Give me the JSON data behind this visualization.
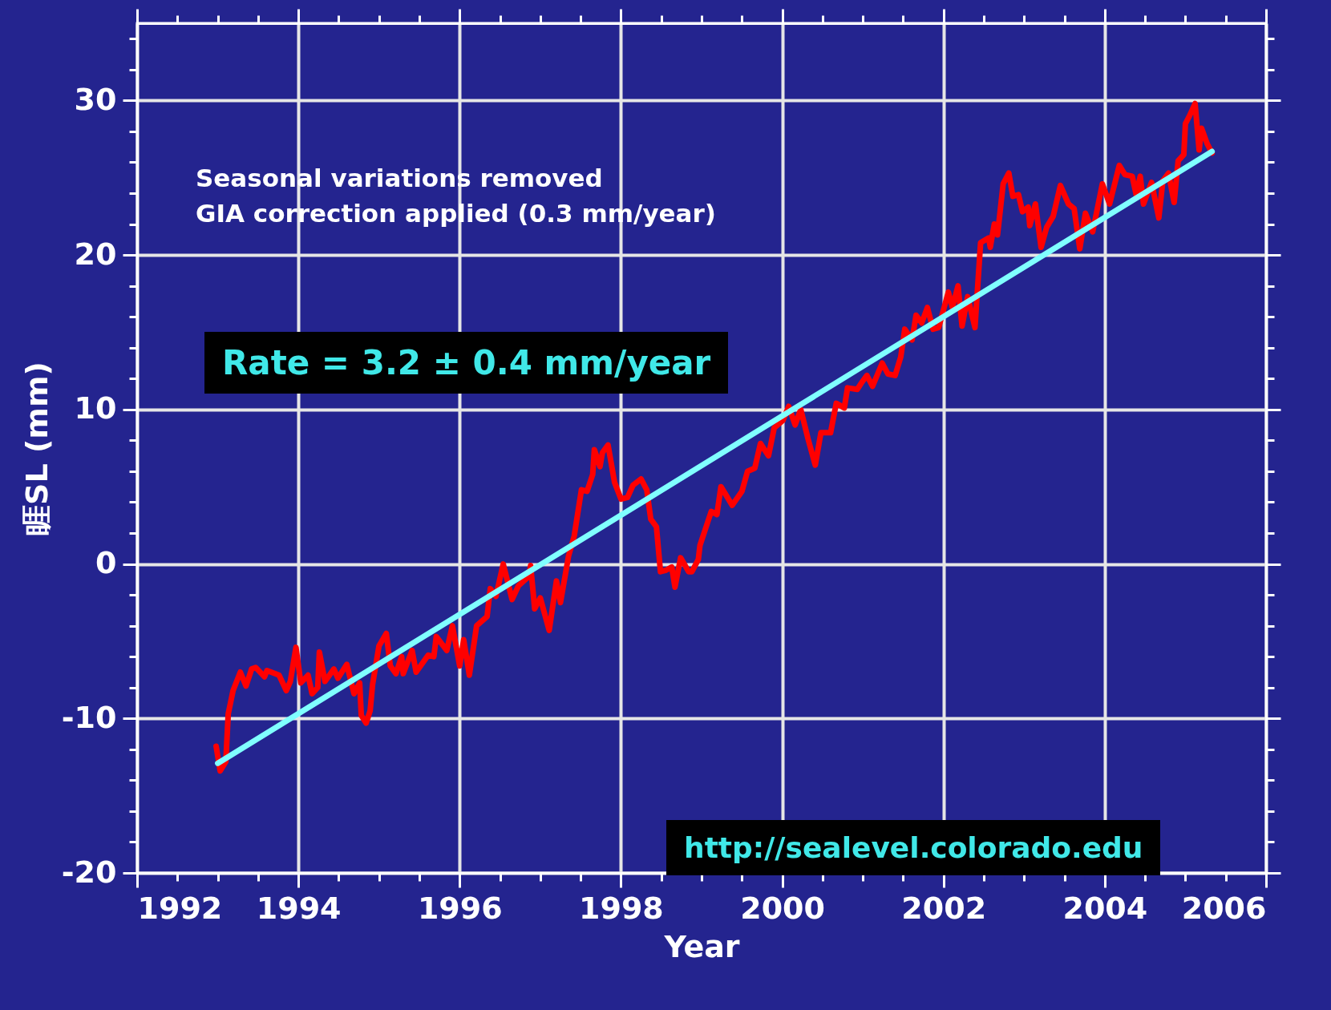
{
  "chart_data": {
    "type": "line",
    "xlabel": "Year",
    "ylabel": "睚SL (mm)",
    "xlim": [
      1992,
      2006
    ],
    "ylim": [
      -20,
      35
    ],
    "xticks": [
      1992,
      {
        "value": 1992.5,
        "label": null
      },
      {
        "value": 1993,
        "label": null
      },
      {
        "value": 1993.5,
        "label": null
      },
      1994,
      {
        "value": 1994.5,
        "label": null
      },
      {
        "value": 1995,
        "label": null
      },
      {
        "value": 1995.5,
        "label": null
      },
      1996,
      {
        "value": 1996.5,
        "label": null
      },
      {
        "value": 1997,
        "label": null
      },
      {
        "value": 1997.5,
        "label": null
      },
      1998,
      {
        "value": 1998.5,
        "label": null
      },
      {
        "value": 1999,
        "label": null
      },
      {
        "value": 1999.5,
        "label": null
      },
      2000,
      {
        "value": 2000.5,
        "label": null
      },
      {
        "value": 2001,
        "label": null
      },
      {
        "value": 2001.5,
        "label": null
      },
      2002,
      {
        "value": 2002.5,
        "label": null
      },
      {
        "value": 2003,
        "label": null
      },
      {
        "value": 2003.5,
        "label": null
      },
      2004,
      {
        "value": 2004.5,
        "label": null
      },
      {
        "value": 2005,
        "label": null
      },
      {
        "value": 2005.5,
        "label": null
      },
      2006
    ],
    "yticks": [
      -20,
      {
        "value": -18,
        "label": null
      },
      {
        "value": -16,
        "label": null
      },
      {
        "value": -14,
        "label": null
      },
      {
        "value": -12,
        "label": null
      },
      -10,
      {
        "value": -8,
        "label": null
      },
      {
        "value": -6,
        "label": null
      },
      {
        "value": -4,
        "label": null
      },
      {
        "value": -2,
        "label": null
      },
      0,
      {
        "value": 2,
        "label": null
      },
      {
        "value": 4,
        "label": null
      },
      {
        "value": 6,
        "label": null
      },
      {
        "value": 8,
        "label": null
      },
      10,
      {
        "value": 12,
        "label": null
      },
      {
        "value": 14,
        "label": null
      },
      {
        "value": 16,
        "label": null
      },
      {
        "value": 18,
        "label": null
      },
      20,
      {
        "value": 22,
        "label": null
      },
      {
        "value": 24,
        "label": null
      },
      {
        "value": 26,
        "label": null
      },
      {
        "value": 28,
        "label": null
      },
      30,
      {
        "value": 32,
        "label": null
      },
      {
        "value": 34,
        "label": null
      }
    ],
    "grid": true,
    "annotations": [
      "Seasonal variations removed",
      "GIA correction applied (0.3 mm/year)",
      "Rate = 3.2 ± 0.4 mm/year",
      "http://sealevel.colorado.edu"
    ],
    "series": [
      {
        "type": "line",
        "color": "#ff0000",
        "x": [
          1992.98,
          1993.03,
          1993.1,
          1993.13,
          1993.19,
          1993.28,
          1993.35,
          1993.42,
          1993.47,
          1993.58,
          1993.61,
          1993.76,
          1993.85,
          1993.9,
          1993.97,
          1994.03,
          1994.12,
          1994.17,
          1994.24,
          1994.26,
          1994.33,
          1994.44,
          1994.49,
          1994.6,
          1994.69,
          1994.76,
          1994.78,
          1994.84,
          1994.89,
          1994.92,
          1995.0,
          1995.09,
          1995.14,
          1995.21,
          1995.28,
          1995.3,
          1995.41,
          1995.46,
          1995.61,
          1995.68,
          1995.71,
          1995.84,
          1995.91,
          1996.0,
          1996.05,
          1996.12,
          1996.21,
          1996.34,
          1996.38,
          1996.45,
          1996.54,
          1996.65,
          1996.73,
          1996.86,
          1996.88,
          1996.93,
          1997.0,
          1997.11,
          1997.2,
          1997.25,
          1997.35,
          1997.42,
          1997.51,
          1997.58,
          1997.65,
          1997.67,
          1997.74,
          1997.77,
          1997.84,
          1997.92,
          1998.0,
          1998.08,
          1998.15,
          1998.25,
          1998.32,
          1998.37,
          1998.44,
          1998.49,
          1998.56,
          1998.63,
          1998.67,
          1998.74,
          1998.84,
          1998.88,
          1998.96,
          1998.98,
          1999.12,
          1999.19,
          1999.24,
          1999.38,
          1999.5,
          1999.57,
          1999.66,
          1999.73,
          1999.83,
          1999.9,
          2000.01,
          2000.08,
          2000.16,
          2000.23,
          2000.32,
          2000.41,
          2000.48,
          2000.6,
          2000.67,
          2000.77,
          2000.81,
          2000.93,
          2000.98,
          2001.05,
          2001.12,
          2001.24,
          2001.31,
          2001.4,
          2001.47,
          2001.52,
          2001.61,
          2001.66,
          2001.73,
          2001.8,
          2001.87,
          2001.94,
          2002.06,
          2002.11,
          2002.18,
          2002.23,
          2002.3,
          2002.39,
          2002.46,
          2002.56,
          2002.58,
          2002.63,
          2002.67,
          2002.74,
          2002.81,
          2002.86,
          2002.93,
          2002.98,
          2003.05,
          2003.07,
          2003.14,
          2003.21,
          2003.28,
          2003.36,
          2003.45,
          2003.55,
          2003.62,
          2003.69,
          2003.76,
          2003.85,
          2003.97,
          2004.06,
          2004.18,
          2004.25,
          2004.34,
          2004.39,
          2004.44,
          2004.48,
          2004.58,
          2004.67,
          2004.72,
          2004.79,
          2004.86,
          2004.91,
          2004.98,
          2005.0,
          2005.05,
          2005.12,
          2005.17,
          2005.2,
          2005.27,
          2005.33
        ],
        "values": [
          -11.8,
          -13.4,
          -12.8,
          -9.7,
          -8.2,
          -7.0,
          -7.9,
          -6.8,
          -6.7,
          -7.3,
          -6.9,
          -7.2,
          -8.2,
          -7.6,
          -5.4,
          -7.7,
          -7.2,
          -8.4,
          -8.0,
          -5.7,
          -7.6,
          -6.8,
          -7.4,
          -6.5,
          -8.4,
          -7.7,
          -9.8,
          -10.3,
          -9.5,
          -7.8,
          -5.3,
          -4.5,
          -6.6,
          -7.1,
          -6.0,
          -7.1,
          -5.6,
          -7.0,
          -5.9,
          -6.0,
          -4.7,
          -5.6,
          -4.0,
          -6.6,
          -4.9,
          -7.2,
          -4.0,
          -3.4,
          -1.6,
          -2.1,
          0.0,
          -2.3,
          -1.4,
          -0.8,
          -0.1,
          -2.9,
          -2.2,
          -4.3,
          -1.1,
          -2.5,
          0.5,
          1.8,
          4.8,
          4.7,
          5.8,
          7.4,
          6.3,
          7.2,
          7.7,
          5.3,
          4.2,
          4.3,
          5.1,
          5.5,
          4.8,
          2.9,
          2.4,
          -0.5,
          -0.4,
          -0.2,
          -1.5,
          0.4,
          -0.5,
          -0.5,
          0.3,
          1.2,
          3.4,
          3.2,
          5.0,
          3.8,
          4.7,
          6.0,
          6.2,
          7.8,
          7.0,
          8.8,
          9.3,
          10.2,
          9.0,
          10.0,
          8.1,
          6.4,
          8.5,
          8.5,
          10.4,
          10.1,
          11.4,
          11.3,
          11.7,
          12.2,
          11.5,
          13.0,
          12.3,
          12.2,
          13.4,
          15.2,
          14.5,
          16.1,
          15.6,
          16.6,
          15.2,
          15.3,
          17.6,
          16.6,
          18.0,
          15.4,
          17.3,
          15.3,
          20.8,
          21.1,
          20.5,
          22.0,
          21.3,
          24.6,
          25.3,
          23.8,
          23.9,
          22.8,
          23.1,
          21.9,
          23.3,
          20.5,
          21.8,
          22.5,
          24.5,
          23.3,
          23.0,
          20.4,
          22.7,
          21.5,
          24.6,
          23.3,
          25.8,
          25.2,
          25.1,
          23.9,
          25.1,
          23.3,
          24.7,
          22.4,
          24.8,
          25.3,
          23.4,
          26.1,
          26.5,
          28.5,
          29.0,
          29.8,
          26.8,
          28.2,
          27.2,
          26.6
        ]
      },
      {
        "type": "line",
        "color": "#80ffff",
        "x": [
          1993.0,
          2005.33
        ],
        "values": [
          -12.9,
          26.7
        ]
      }
    ]
  }
}
